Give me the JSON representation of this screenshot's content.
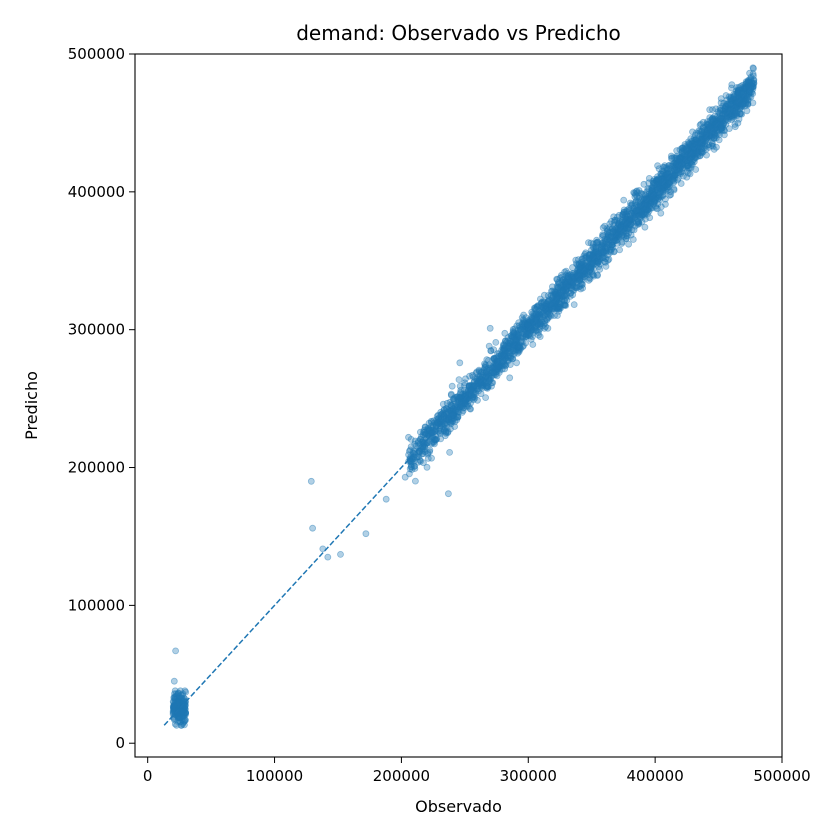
{
  "chart_data": {
    "type": "scatter",
    "title": "demand: Observado vs Predicho",
    "xlabel": "Observado",
    "ylabel": "Predicho",
    "xlim": [
      -10000,
      500000
    ],
    "ylim": [
      -10000,
      500000
    ],
    "xticks": [
      0,
      100000,
      200000,
      300000,
      400000,
      500000
    ],
    "yticks": [
      0,
      100000,
      200000,
      300000,
      400000,
      500000
    ],
    "xtick_labels": [
      "0",
      "100000",
      "200000",
      "300000",
      "400000",
      "500000"
    ],
    "ytick_labels": [
      "0",
      "100000",
      "200000",
      "300000",
      "400000",
      "500000"
    ],
    "grid": false,
    "colors": {
      "points": "#1f77b4",
      "reference_line": "#1f77b4"
    },
    "reference_line": {
      "style": "dashed",
      "x": [
        13000,
        478000
      ],
      "y": [
        13000,
        478000
      ]
    },
    "main_cluster": {
      "x_range": [
        205000,
        478000
      ],
      "relation": "y ≈ x",
      "spread": 6000,
      "point_count": 2600
    },
    "low_cluster": {
      "x_range": [
        20000,
        30000
      ],
      "y_range": [
        13000,
        38000
      ],
      "point_count": 180
    },
    "outliers": [
      {
        "x": 129000,
        "y": 190000
      },
      {
        "x": 130000,
        "y": 156000
      },
      {
        "x": 138000,
        "y": 141000
      },
      {
        "x": 142000,
        "y": 135000
      },
      {
        "x": 152000,
        "y": 137000
      },
      {
        "x": 172000,
        "y": 152000
      },
      {
        "x": 188000,
        "y": 177000
      },
      {
        "x": 203000,
        "y": 193000
      },
      {
        "x": 237000,
        "y": 181000
      },
      {
        "x": 238000,
        "y": 211000
      },
      {
        "x": 22000,
        "y": 67000
      },
      {
        "x": 21000,
        "y": 45000
      },
      {
        "x": 233000,
        "y": 246000
      },
      {
        "x": 240000,
        "y": 259000
      },
      {
        "x": 270000,
        "y": 301000
      },
      {
        "x": 246000,
        "y": 276000
      }
    ]
  }
}
